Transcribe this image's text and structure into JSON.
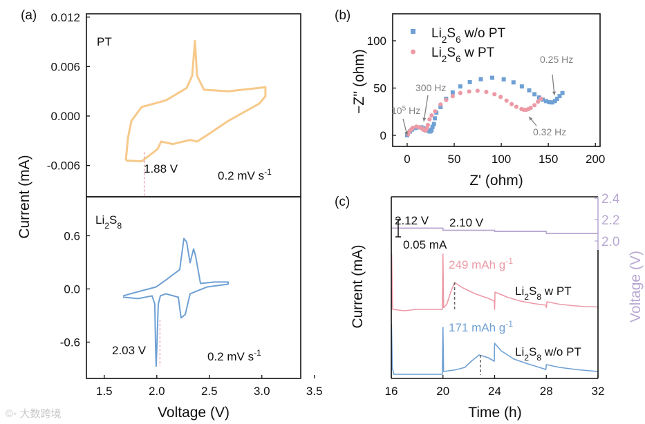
{
  "watermark": "大数跨境",
  "colors": {
    "orange": "#f6c98a",
    "blue": "#6fa0d4",
    "pink": "#ec9aa6",
    "purple": "#b8a8d2",
    "gray": "#808080",
    "dash_red": "#e88a9a"
  },
  "chart_data": [
    {
      "id": "a-top",
      "panel_label": "(a)",
      "type": "line",
      "title": "PT",
      "ylabel": "Current (mA)",
      "xlabel": "Voltage (V)",
      "xlim": [
        1.33,
        3.37
      ],
      "ylim": [
        -0.0098,
        0.0124
      ],
      "yticks": [
        0.012,
        0.006,
        0.0,
        -0.006
      ],
      "ytick_labels": [
        "0.012",
        "0.006",
        "0.000",
        "-0.006"
      ],
      "annotations": {
        "marker_voltage": 1.88,
        "marker_label": "1.88 V",
        "scan_rate": "0.2 mV s^{-1}"
      },
      "series": [
        {
          "name": "PT",
          "color": "#f6c98a",
          "points": [
            [
              1.705,
              -0.0054
            ],
            [
              1.725,
              -0.0027
            ],
            [
              1.758,
              -0.0006
            ],
            [
              1.856,
              0.0011
            ],
            [
              2.087,
              0.0019
            ],
            [
              2.284,
              0.0034
            ],
            [
              2.337,
              0.0049
            ],
            [
              2.363,
              0.0091
            ],
            [
              2.383,
              0.0049
            ],
            [
              2.448,
              0.0032
            ],
            [
              2.679,
              0.003
            ],
            [
              3.034,
              0.0035
            ],
            [
              3.034,
              0.0024
            ],
            [
              2.975,
              0.0015
            ],
            [
              2.679,
              -0.0006
            ],
            [
              2.481,
              -0.0023
            ],
            [
              2.383,
              -0.0031
            ],
            [
              2.317,
              -0.0029
            ],
            [
              2.152,
              -0.0034
            ],
            [
              2.041,
              -0.0031
            ],
            [
              2.008,
              -0.004
            ],
            [
              1.856,
              -0.0055
            ],
            [
              1.705,
              -0.0054
            ]
          ]
        }
      ]
    },
    {
      "id": "a-bottom",
      "type": "line",
      "title": "Li_2S_8",
      "xlabel": "Voltage (V)",
      "xlim": [
        1.33,
        3.37
      ],
      "ylim": [
        -1.01,
        1.04
      ],
      "xticks": [
        1.5,
        2.0,
        2.5,
        3.0,
        3.5
      ],
      "xtick_labels": [
        "1.5",
        "2.0",
        "2.5",
        "3.0",
        "3.5"
      ],
      "yticks": [
        0.6,
        0.0,
        -0.6
      ],
      "ytick_labels": [
        "0.6",
        "0.0",
        "-0.6"
      ],
      "annotations": {
        "marker_voltage": 2.03,
        "marker_label": "2.03 V",
        "scan_rate": "0.2 mV s^{-1}"
      },
      "series": [
        {
          "name": "Li2S8",
          "color": "#6fa0d4",
          "points": [
            [
              1.679,
              -0.078
            ],
            [
              1.823,
              -0.031
            ],
            [
              1.994,
              0.023
            ],
            [
              2.087,
              0.101
            ],
            [
              2.218,
              0.218
            ],
            [
              2.258,
              0.569
            ],
            [
              2.284,
              0.53
            ],
            [
              2.317,
              0.296
            ],
            [
              2.35,
              0.452
            ],
            [
              2.369,
              0.374
            ],
            [
              2.416,
              0.062
            ],
            [
              2.547,
              0.078
            ],
            [
              2.679,
              0.078
            ],
            [
              2.679,
              0.054
            ],
            [
              2.481,
              0.023
            ],
            [
              2.317,
              -0.055
            ],
            [
              2.271,
              -0.288
            ],
            [
              2.231,
              -0.327
            ],
            [
              2.205,
              -0.093
            ],
            [
              2.087,
              -0.055
            ],
            [
              2.034,
              -0.078
            ],
            [
              2.014,
              -0.171
            ],
            [
              2.001,
              -0.639
            ],
            [
              1.994,
              -0.872
            ],
            [
              1.988,
              -0.639
            ],
            [
              1.981,
              -0.171
            ],
            [
              1.955,
              -0.078
            ],
            [
              1.823,
              -0.109
            ],
            [
              1.679,
              -0.093
            ]
          ]
        }
      ]
    },
    {
      "id": "b",
      "panel_label": "(b)",
      "type": "scatter",
      "xlabel": "Z' (ohm)",
      "ylabel": "−Z'' (ohm)",
      "xlim": [
        -15.4,
        205
      ],
      "ylim": [
        -11.7,
        128.5
      ],
      "xticks": [
        0,
        50,
        100,
        150,
        200
      ],
      "xtick_labels": [
        "0",
        "50",
        "100",
        "150",
        "200"
      ],
      "yticks": [
        0,
        50,
        100
      ],
      "ytick_labels": [
        "0",
        "50",
        "100"
      ],
      "legend": "top-left",
      "annotations": [
        {
          "text": "10^5 Hz",
          "x": -1,
          "y": 0
        },
        {
          "text": "300 Hz",
          "x": 18,
          "y": 14
        },
        {
          "text": "0.25 Hz",
          "x": 154,
          "y": 36
        },
        {
          "text": "0.32 Hz",
          "x": 127,
          "y": 26
        }
      ],
      "series": [
        {
          "name": "Li_2S_6 w/o PT",
          "marker": "square",
          "color": "#6fa0d4",
          "points": [
            [
              0,
              0
            ],
            [
              3,
              4
            ],
            [
              5,
              6
            ],
            [
              8,
              7.6
            ],
            [
              11,
              8.3
            ],
            [
              15,
              8.5
            ],
            [
              18,
              7.5
            ],
            [
              20,
              6.5
            ],
            [
              22,
              5
            ],
            [
              24,
              4
            ],
            [
              25,
              4.5
            ],
            [
              26,
              6
            ],
            [
              27,
              9
            ],
            [
              28.5,
              12
            ],
            [
              29.5,
              18
            ],
            [
              31,
              24
            ],
            [
              35.5,
              30
            ],
            [
              41.4,
              38.6
            ],
            [
              48.4,
              45.4
            ],
            [
              56.5,
              51.7
            ],
            [
              66.6,
              56.3
            ],
            [
              78.3,
              59.4
            ],
            [
              90.4,
              60.9
            ],
            [
              102.6,
              59.2
            ],
            [
              113,
              56
            ],
            [
              121.9,
              51.7
            ],
            [
              129.7,
              47.6
            ],
            [
              135.3,
              43.5
            ],
            [
              140.2,
              40
            ],
            [
              144,
              37.7
            ],
            [
              147.7,
              36.2
            ],
            [
              151,
              35
            ],
            [
              154,
              34.8
            ],
            [
              157,
              36.2
            ],
            [
              159.3,
              38.6
            ],
            [
              162,
              41.5
            ],
            [
              165,
              44.7
            ]
          ]
        },
        {
          "name": "Li_2S_6 w PT",
          "marker": "circle",
          "color": "#ec9aa6",
          "points": [
            [
              1,
              1
            ],
            [
              2,
              3.5
            ],
            [
              4,
              6
            ],
            [
              6,
              8
            ],
            [
              9.8,
              9.2
            ],
            [
              13,
              8.5
            ],
            [
              15.6,
              7.5
            ],
            [
              17,
              6
            ],
            [
              19,
              5
            ],
            [
              20,
              5.5
            ],
            [
              21,
              8
            ],
            [
              22,
              11
            ],
            [
              23.8,
              16.9
            ],
            [
              26,
              21
            ],
            [
              29.7,
              25.4
            ],
            [
              35.5,
              32.6
            ],
            [
              41.4,
              37.4
            ],
            [
              48.4,
              41.5
            ],
            [
              56.5,
              44.7
            ],
            [
              65.9,
              46.4
            ],
            [
              74.8,
              47.1
            ],
            [
              84.1,
              45.9
            ],
            [
              92.8,
              43.5
            ],
            [
              99.3,
              40.6
            ],
            [
              105.6,
              36.7
            ],
            [
              111,
              33
            ],
            [
              116,
              30.2
            ],
            [
              121.5,
              27.8
            ],
            [
              124,
              27
            ],
            [
              126.6,
              27
            ],
            [
              129,
              27.8
            ],
            [
              131.3,
              29
            ],
            [
              135.3,
              31.9
            ],
            [
              139,
              35.5
            ],
            [
              142.3,
              38.6
            ]
          ]
        }
      ]
    },
    {
      "id": "c",
      "panel_label": "(c)",
      "type": "line",
      "xlabel": "Time (h)",
      "ylabel": "Current (mA)",
      "y2label": "Voltage (V)",
      "xlim": [
        16,
        32
      ],
      "ylim": [
        0,
        0.526
      ],
      "y2lim": [
        0.716,
        2.413
      ],
      "xticks": [
        16,
        20,
        24,
        28,
        32
      ],
      "xtick_labels": [
        "16",
        "20",
        "24",
        "28",
        "32"
      ],
      "y2ticks": [
        2.0,
        2.2,
        2.4
      ],
      "y2tick_labels": [
        "2.0",
        "2.2",
        "2.4"
      ],
      "scale_bar": {
        "value": 0.05,
        "label": "0.05 mA"
      },
      "voltage_labels": [
        "2.12 V",
        "2.10 V"
      ],
      "voltage": {
        "color": "#b8a8d2",
        "steps": [
          [
            16,
            2.12
          ],
          [
            20,
            2.12
          ],
          [
            20,
            2.1
          ],
          [
            24,
            2.1
          ],
          [
            24,
            2.09
          ],
          [
            28,
            2.09
          ],
          [
            28,
            2.07
          ],
          [
            32,
            2.07
          ]
        ]
      },
      "series": [
        {
          "name": "Li_2S_8 w PT",
          "color": "#ec9aa6",
          "capacity": "249 mAh g^{-1}",
          "peak_time": 20.9,
          "peak_value": 0.278,
          "base": 0.2,
          "points": [
            [
              16,
              0.2
            ],
            [
              16.03,
              0.36
            ],
            [
              16.1,
              0.2
            ],
            [
              17,
              0.196
            ],
            [
              18,
              0.2
            ],
            [
              19,
              0.2
            ],
            [
              19.95,
              0.2
            ],
            [
              20,
              0.36
            ],
            [
              20.05,
              0.205
            ],
            [
              20.3,
              0.215
            ],
            [
              20.6,
              0.25
            ],
            [
              20.9,
              0.278
            ],
            [
              21.5,
              0.263
            ],
            [
              22.5,
              0.245
            ],
            [
              23.5,
              0.232
            ],
            [
              23.97,
              0.224
            ],
            [
              24,
              0.2
            ],
            [
              24.03,
              0.25
            ],
            [
              25,
              0.235
            ],
            [
              26,
              0.224
            ],
            [
              27,
              0.217
            ],
            [
              27.97,
              0.212
            ],
            [
              28,
              0.205
            ],
            [
              28.05,
              0.222
            ],
            [
              29,
              0.215
            ],
            [
              30,
              0.211
            ],
            [
              31,
              0.208
            ],
            [
              32,
              0.207
            ]
          ]
        },
        {
          "name": "Li_2S_8 w/o PT",
          "color": "#6fa0d4",
          "capacity": "171 mAh g^{-1}",
          "peak_time": 22.9,
          "peak_value": 0.068,
          "base": 0.01,
          "points": [
            [
              16,
              0.01
            ],
            [
              16.02,
              0.156
            ],
            [
              16.08,
              0.03
            ],
            [
              16.2,
              0.012
            ],
            [
              19.95,
              0.012
            ],
            [
              20,
              0.148
            ],
            [
              20.05,
              0.02
            ],
            [
              21,
              0.025
            ],
            [
              21.7,
              0.032
            ],
            [
              22.2,
              0.05
            ],
            [
              22.8,
              0.068
            ],
            [
              23.5,
              0.06
            ],
            [
              23.97,
              0.05
            ],
            [
              24,
              0.102
            ],
            [
              24.5,
              0.08
            ],
            [
              25.5,
              0.056
            ],
            [
              26.5,
              0.043
            ],
            [
              27.97,
              0.026
            ],
            [
              28,
              0.04
            ],
            [
              29,
              0.032
            ],
            [
              30.5,
              0.025
            ],
            [
              32,
              0.02
            ]
          ]
        }
      ]
    }
  ]
}
